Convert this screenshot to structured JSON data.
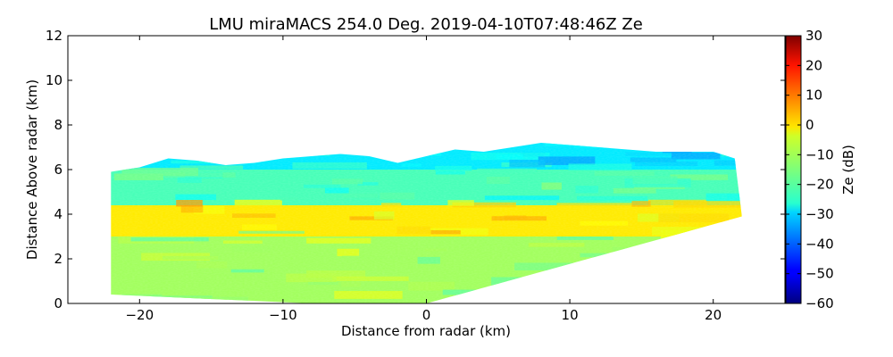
{
  "chart_data": {
    "type": "heatmap",
    "title": "LMU miraMACS 254.0 Deg. 2019-04-10T07:48:46Z  Ze",
    "xlabel": "Distance from radar (km)",
    "ylabel": "Distance Above radar  (km)",
    "xlim": [
      -25,
      25
    ],
    "ylim": [
      0,
      12
    ],
    "xticks": [
      -20,
      -10,
      0,
      10,
      20
    ],
    "xtick_labels": [
      "−20",
      "−10",
      "0",
      "10",
      "20"
    ],
    "yticks": [
      0,
      2,
      4,
      6,
      8,
      10,
      12
    ],
    "ytick_labels": [
      "0",
      "2",
      "4",
      "6",
      "8",
      "10",
      "12"
    ],
    "colorbar": {
      "label": "Ze (dB)",
      "range": [
        -60,
        30
      ],
      "ticks": [
        30,
        20,
        10,
        0,
        -10,
        -20,
        -30,
        -40,
        -50,
        -60
      ],
      "tick_labels": [
        "30",
        "20",
        "10",
        "0",
        "−10",
        "−20",
        "−30",
        "−40",
        "−50",
        "−60"
      ],
      "colormap": "jet"
    },
    "field": {
      "x_range": [
        -22,
        22
      ],
      "top_height_km": [
        [
          -22,
          5.9
        ],
        [
          -20,
          6.1
        ],
        [
          -18,
          6.5
        ],
        [
          -16,
          6.4
        ],
        [
          -14,
          6.2
        ],
        [
          -12,
          6.3
        ],
        [
          -10,
          6.5
        ],
        [
          -8,
          6.6
        ],
        [
          -6,
          6.7
        ],
        [
          -4,
          6.6
        ],
        [
          -2,
          6.3
        ],
        [
          0,
          6.6
        ],
        [
          2,
          6.9
        ],
        [
          4,
          6.8
        ],
        [
          6,
          7.0
        ],
        [
          8,
          7.2
        ],
        [
          10,
          7.1
        ],
        [
          12,
          7.0
        ],
        [
          14,
          6.9
        ],
        [
          16,
          6.8
        ],
        [
          18,
          6.8
        ],
        [
          20,
          6.8
        ],
        [
          21.5,
          6.5
        ],
        [
          22,
          3.9
        ]
      ],
      "bottom_edge": [
        [
          -22,
          0.4
        ],
        [
          -8,
          0.0
        ],
        [
          0,
          0.0
        ],
        [
          22,
          3.9
        ]
      ],
      "typical_ze_db": {
        "echo_top_layer": -28,
        "upper_cloud_6km": -20,
        "bright_layer_3_4km": -2,
        "lower_region": -12
      }
    }
  }
}
